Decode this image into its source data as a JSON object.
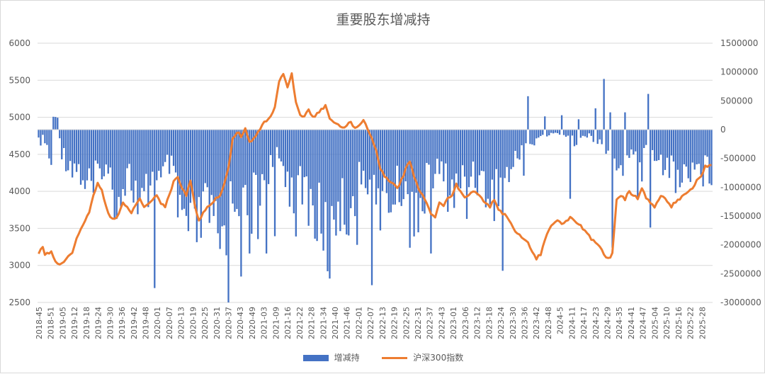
{
  "chart_data": {
    "type": "bar+line",
    "title": "重要股东增减持",
    "left_axis": {
      "min": 2500,
      "max": 6000,
      "step": 500,
      "ticks": [
        "2500",
        "3000",
        "3500",
        "4000",
        "4500",
        "5000",
        "5500",
        "6000"
      ]
    },
    "right_axis": {
      "min": -3000000,
      "max": 1500000,
      "step": 500000,
      "ticks": [
        "-3000000",
        "-2500000",
        "-2000000",
        "-1500000",
        "-1000000",
        "-500000",
        "0",
        "500000",
        "1000000",
        "1500000"
      ]
    },
    "x_tick_labels": [
      "2018-45",
      "2018-51",
      "2019-05",
      "2019-12",
      "2019-18",
      "2019-24",
      "2019-30",
      "2019-36",
      "2019-42",
      "2019-48",
      "2020-01",
      "2020-07",
      "2020-13",
      "2020-19",
      "2020-25",
      "2020-31",
      "2020-37",
      "2020-43",
      "2020-49",
      "2021-03",
      "2021-09",
      "2021-16",
      "2021-22",
      "2021-28",
      "2021-34",
      "2021-40",
      "2021-46",
      "2022-01",
      "2022-07",
      "2022-13",
      "2022-19",
      "2022-25",
      "2022-31",
      "2022-37",
      "2022-43",
      "2023-01",
      "2023-06",
      "2023-12",
      "2023-18",
      "2023-24",
      "2023-30",
      "2023-36",
      "2023-42",
      "2023-48",
      "2024-5",
      "2024-11",
      "2024-17",
      "2024-23",
      "2024-29",
      "2024-35",
      "2024-41",
      "2024-47",
      "2025-04",
      "2025-10",
      "2025-16",
      "2025-22",
      "2025-28"
    ],
    "grid": true,
    "legend_position": "bottom",
    "series": [
      {
        "name": "增减持",
        "type": "bar",
        "axis": "right",
        "color": "#4472c4",
        "anchors": [
          [
            0,
            -250000
          ],
          [
            2,
            -150000
          ],
          [
            4,
            -300000
          ],
          [
            6,
            -550000
          ],
          [
            7,
            320000
          ],
          [
            9,
            200000
          ],
          [
            11,
            -400000
          ],
          [
            14,
            -550000
          ],
          [
            18,
            -650000
          ],
          [
            22,
            -900000
          ],
          [
            26,
            -1100000
          ],
          [
            30,
            -600000
          ],
          [
            34,
            -900000
          ],
          [
            38,
            -1200000
          ],
          [
            42,
            -700000
          ],
          [
            46,
            -1100000
          ],
          [
            48,
            -1800000
          ],
          [
            50,
            -1300000
          ],
          [
            54,
            -800000
          ],
          [
            58,
            -1000000
          ],
          [
            62,
            -600000
          ],
          [
            66,
            -1400000
          ],
          [
            70,
            -1700000
          ],
          [
            74,
            -1900000
          ],
          [
            78,
            -1500000
          ],
          [
            82,
            -1800000
          ],
          [
            86,
            -2100000
          ],
          [
            90,
            -1400000
          ],
          [
            94,
            -1100000
          ],
          [
            98,
            -1600000
          ],
          [
            102,
            -1200000
          ],
          [
            106,
            -900000
          ],
          [
            110,
            -600000
          ],
          [
            114,
            -500000
          ],
          [
            118,
            -800000
          ],
          [
            122,
            -1300000
          ],
          [
            126,
            -1000000
          ],
          [
            130,
            -1400000
          ],
          [
            134,
            -1700000
          ],
          [
            138,
            -2000000
          ],
          [
            142,
            -1300000
          ],
          [
            146,
            -1400000
          ],
          [
            150,
            -1100000
          ],
          [
            154,
            -700000
          ],
          [
            158,
            -900000
          ],
          [
            162,
            -1000000
          ],
          [
            166,
            -1200000
          ],
          [
            170,
            -1100000
          ],
          [
            174,
            -900000
          ],
          [
            178,
            -1300000
          ],
          [
            182,
            -1200000
          ],
          [
            186,
            -900000
          ],
          [
            190,
            -700000
          ],
          [
            194,
            -1000000
          ],
          [
            198,
            -1100000
          ],
          [
            202,
            -800000
          ],
          [
            206,
            -700000
          ],
          [
            210,
            -900000
          ],
          [
            214,
            -1200000
          ],
          [
            218,
            -1000000
          ],
          [
            222,
            -800000
          ],
          [
            226,
            -600000
          ],
          [
            230,
            -200000
          ],
          [
            234,
            -300000
          ],
          [
            238,
            -100000
          ],
          [
            242,
            -100000
          ],
          [
            246,
            -50000
          ],
          [
            250,
            -100000
          ],
          [
            254,
            -200000
          ],
          [
            258,
            -150000
          ],
          [
            262,
            -100000
          ],
          [
            266,
            -300000
          ],
          [
            270,
            -400000
          ],
          [
            274,
            -700000
          ],
          [
            278,
            -600000
          ],
          [
            282,
            -500000
          ],
          [
            286,
            -400000
          ],
          [
            290,
            -300000
          ],
          [
            294,
            -500000
          ],
          [
            298,
            -600000
          ],
          [
            302,
            -700000
          ],
          [
            306,
            -800000
          ],
          [
            310,
            -600000
          ],
          [
            314,
            -700000
          ]
        ],
        "spikes": [
          [
            5,
            -500000
          ],
          [
            10,
            -150000
          ],
          [
            36,
            -1550000
          ],
          [
            55,
            -2750000
          ],
          [
            80,
            -1000000
          ],
          [
            90,
            -3000000
          ],
          [
            96,
            -2550000
          ],
          [
            100,
            -2150000
          ],
          [
            104,
            -1900000
          ],
          [
            108,
            -2150000
          ],
          [
            112,
            -1850000
          ],
          [
            135,
            -2100000
          ],
          [
            142,
            -1250000
          ],
          [
            151,
            -2000000
          ],
          [
            158,
            -2700000
          ],
          [
            162,
            -1750000
          ],
          [
            168,
            -1300000
          ],
          [
            176,
            -2050000
          ],
          [
            186,
            -2150000
          ],
          [
            203,
            -1550000
          ],
          [
            213,
            -1200000
          ],
          [
            220,
            -2450000
          ],
          [
            230,
            -800000
          ],
          [
            240,
            -1700000
          ],
          [
            252,
            -1200000
          ],
          [
            272,
            -2050000
          ],
          [
            284,
            -1200000
          ],
          [
            286,
            -900000
          ],
          [
            290,
            -1700000
          ],
          [
            302,
            -1000000
          ],
          [
            323,
            -1100000
          ],
          [
            232,
            580000
          ],
          [
            240,
            230000
          ],
          [
            248,
            250000
          ],
          [
            256,
            180000
          ],
          [
            264,
            370000
          ],
          [
            268,
            880000
          ],
          [
            271,
            300000
          ],
          [
            278,
            300000
          ],
          [
            289,
            620000
          ],
          [
            297,
            -700000
          ],
          [
            302,
            -1100000
          ],
          [
            304,
            -1000000
          ]
        ]
      },
      {
        "name": "沪深300指数",
        "type": "line",
        "axis": "left",
        "color": "#ed7d31",
        "anchors": [
          [
            0,
            3150
          ],
          [
            2,
            3250
          ],
          [
            3,
            3150
          ],
          [
            6,
            3170
          ],
          [
            8,
            3050
          ],
          [
            10,
            3000
          ],
          [
            13,
            3080
          ],
          [
            16,
            3180
          ],
          [
            18,
            3350
          ],
          [
            20,
            3500
          ],
          [
            22,
            3600
          ],
          [
            24,
            3700
          ],
          [
            26,
            3950
          ],
          [
            28,
            4100
          ],
          [
            30,
            4000
          ],
          [
            32,
            3800
          ],
          [
            34,
            3650
          ],
          [
            36,
            3620
          ],
          [
            38,
            3700
          ],
          [
            40,
            3850
          ],
          [
            42,
            3800
          ],
          [
            44,
            3700
          ],
          [
            46,
            3820
          ],
          [
            48,
            3900
          ],
          [
            50,
            3800
          ],
          [
            52,
            3820
          ],
          [
            54,
            3900
          ],
          [
            56,
            3950
          ],
          [
            58,
            3850
          ],
          [
            60,
            3800
          ],
          [
            62,
            3950
          ],
          [
            64,
            4150
          ],
          [
            66,
            4200
          ],
          [
            68,
            4050
          ],
          [
            70,
            3950
          ],
          [
            72,
            4150
          ],
          [
            74,
            3800
          ],
          [
            76,
            3600
          ],
          [
            78,
            3700
          ],
          [
            80,
            3800
          ],
          [
            82,
            3850
          ],
          [
            84,
            3900
          ],
          [
            86,
            3950
          ],
          [
            88,
            4100
          ],
          [
            90,
            4300
          ],
          [
            92,
            4700
          ],
          [
            94,
            4800
          ],
          [
            96,
            4750
          ],
          [
            98,
            4850
          ],
          [
            100,
            4650
          ],
          [
            102,
            4700
          ],
          [
            104,
            4800
          ],
          [
            106,
            4900
          ],
          [
            108,
            4950
          ],
          [
            110,
            5000
          ],
          [
            112,
            5150
          ],
          [
            114,
            5500
          ],
          [
            116,
            5600
          ],
          [
            118,
            5400
          ],
          [
            120,
            5600
          ],
          [
            122,
            5200
          ],
          [
            124,
            5050
          ],
          [
            126,
            5000
          ],
          [
            128,
            5100
          ],
          [
            130,
            5000
          ],
          [
            132,
            5050
          ],
          [
            134,
            5100
          ],
          [
            136,
            5150
          ],
          [
            138,
            5000
          ],
          [
            140,
            4950
          ],
          [
            142,
            4900
          ],
          [
            144,
            4850
          ],
          [
            146,
            4900
          ],
          [
            148,
            4950
          ],
          [
            150,
            4850
          ],
          [
            152,
            4900
          ],
          [
            154,
            4950
          ],
          [
            156,
            4850
          ],
          [
            158,
            4700
          ],
          [
            160,
            4550
          ],
          [
            162,
            4300
          ],
          [
            164,
            4200
          ],
          [
            166,
            4150
          ],
          [
            168,
            4100
          ],
          [
            170,
            4050
          ],
          [
            172,
            4150
          ],
          [
            174,
            4300
          ],
          [
            176,
            4400
          ],
          [
            178,
            4200
          ],
          [
            180,
            4050
          ],
          [
            182,
            3950
          ],
          [
            184,
            3850
          ],
          [
            186,
            3700
          ],
          [
            188,
            3650
          ],
          [
            190,
            3850
          ],
          [
            192,
            3800
          ],
          [
            194,
            3900
          ],
          [
            196,
            3950
          ],
          [
            198,
            4100
          ],
          [
            200,
            4000
          ],
          [
            202,
            3900
          ],
          [
            204,
            3950
          ],
          [
            206,
            4000
          ],
          [
            208,
            3950
          ],
          [
            210,
            3900
          ],
          [
            212,
            3850
          ],
          [
            214,
            3800
          ],
          [
            216,
            3900
          ],
          [
            218,
            3750
          ],
          [
            220,
            3700
          ],
          [
            222,
            3650
          ],
          [
            224,
            3550
          ],
          [
            226,
            3450
          ],
          [
            228,
            3400
          ],
          [
            230,
            3350
          ],
          [
            232,
            3300
          ],
          [
            234,
            3200
          ],
          [
            236,
            3100
          ],
          [
            238,
            3150
          ],
          [
            240,
            3350
          ],
          [
            242,
            3500
          ],
          [
            244,
            3550
          ],
          [
            246,
            3600
          ],
          [
            248,
            3550
          ],
          [
            250,
            3600
          ],
          [
            252,
            3650
          ],
          [
            254,
            3600
          ],
          [
            256,
            3550
          ],
          [
            258,
            3500
          ],
          [
            260,
            3450
          ],
          [
            262,
            3350
          ],
          [
            264,
            3300
          ],
          [
            266,
            3250
          ],
          [
            268,
            3150
          ],
          [
            270,
            3100
          ],
          [
            272,
            3150
          ],
          [
            274,
            3900
          ],
          [
            276,
            3950
          ],
          [
            278,
            3900
          ],
          [
            280,
            4000
          ],
          [
            282,
            3950
          ],
          [
            284,
            3900
          ],
          [
            286,
            4050
          ],
          [
            288,
            3900
          ],
          [
            290,
            3850
          ],
          [
            292,
            3800
          ],
          [
            294,
            3900
          ],
          [
            296,
            3950
          ],
          [
            298,
            3850
          ],
          [
            300,
            3800
          ],
          [
            302,
            3850
          ],
          [
            304,
            3900
          ],
          [
            306,
            3950
          ],
          [
            308,
            4000
          ],
          [
            310,
            4050
          ],
          [
            312,
            4150
          ],
          [
            314,
            4200
          ],
          [
            316,
            4350
          ]
        ]
      }
    ]
  }
}
